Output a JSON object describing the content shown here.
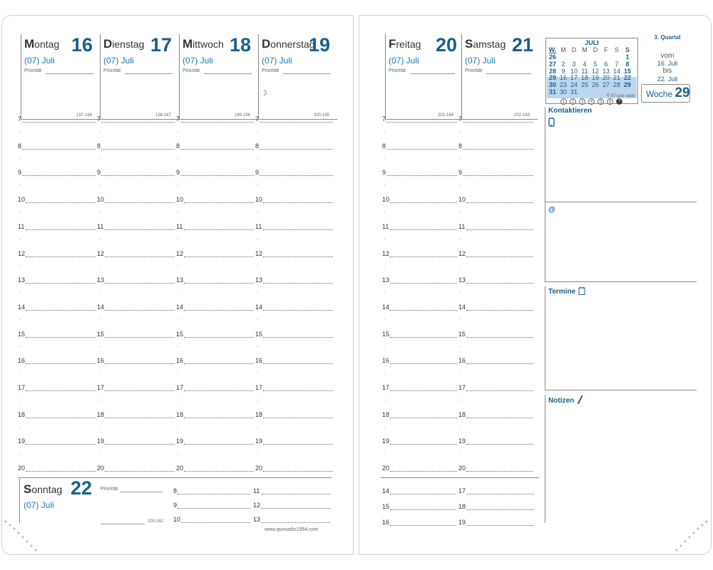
{
  "left_page": {
    "days": [
      {
        "name_cap": "M",
        "name_rest": "ontag",
        "number": "16",
        "month": "(07) Juli",
        "priority_label": "Priorität",
        "count": "197-168"
      },
      {
        "name_cap": "D",
        "name_rest": "ienstag",
        "number": "17",
        "month": "(07) Juli",
        "priority_label": "Priorität",
        "count": "198-167"
      },
      {
        "name_cap": "M",
        "name_rest": "ittwoch",
        "number": "18",
        "month": "(07) Juli",
        "priority_label": "Priorität",
        "count": "199-166"
      },
      {
        "name_cap": "D",
        "name_rest": "onnerstag",
        "number": "19",
        "month": "(07) Juli",
        "priority_label": "Priorität",
        "count": "200-165",
        "moon": "☽"
      }
    ],
    "hours": [
      "7",
      "8",
      "9",
      "10",
      "11",
      "12",
      "13",
      "14",
      "15",
      "16",
      "17",
      "18",
      "19",
      "20"
    ],
    "half_mark": "-",
    "sunday": {
      "name_cap": "S",
      "name_rest": "onntag",
      "number": "22",
      "month": "(07) Juli",
      "priority_label": "Priorität",
      "count": "203-162",
      "hours_col1": [
        "8",
        "9",
        "10"
      ],
      "hours_col2": [
        "11",
        "12",
        "13"
      ]
    },
    "website": "www.quovadis1954.com"
  },
  "right_page": {
    "days": [
      {
        "name_cap": "F",
        "name_rest": "reitag",
        "number": "20",
        "month": "(07) Juli",
        "priority_label": "Priorität",
        "count": "201-164"
      },
      {
        "name_cap": "S",
        "name_rest": "amstag",
        "number": "21",
        "month": "(07) Juli",
        "priority_label": "Priorität",
        "count": "202-163"
      }
    ],
    "hours": [
      "7",
      "8",
      "9",
      "10",
      "11",
      "12",
      "13",
      "14",
      "15",
      "16",
      "17",
      "18",
      "19",
      "20"
    ],
    "extra_hours_col1": [
      "14",
      "15",
      "16"
    ],
    "extra_hours_col2": [
      "17",
      "18",
      "19"
    ],
    "calendar": {
      "title": "JULI",
      "header": [
        "W.",
        "M",
        "D",
        "M",
        "D",
        "F",
        "S",
        "S"
      ],
      "rows": [
        [
          "26",
          "",
          "",
          "",
          "",
          "",
          "",
          "1"
        ],
        [
          "27",
          "2",
          "3",
          "4",
          "5",
          "6",
          "7",
          "8"
        ],
        [
          "28",
          "9",
          "10",
          "11",
          "12",
          "13",
          "14",
          "15"
        ],
        [
          "29",
          "16",
          "17",
          "18",
          "19",
          "20",
          "21",
          "22"
        ],
        [
          "30",
          "23",
          "24",
          "25",
          "26",
          "27",
          "28",
          "29"
        ],
        [
          "31",
          "30",
          "31",
          "",
          "",
          "",
          "",
          ""
        ]
      ],
      "copyright": "© 87 quo vadis",
      "circles": [
        "1",
        "2",
        "3",
        "4",
        "5",
        "6",
        "7"
      ]
    },
    "quartal": "3. Quartal",
    "range": {
      "vom": "vom",
      "from": "16. Juli",
      "bis": "bis",
      "to": "22. Juli"
    },
    "week": {
      "label": "Woche",
      "number": "29"
    },
    "sections": {
      "contacts": "Kontaktieren",
      "at": "@",
      "appointments": "Termine",
      "notes": "Notizen"
    },
    "colors": {
      "accent": "#1b5e8e",
      "highlight": "#bcd6ef"
    }
  }
}
